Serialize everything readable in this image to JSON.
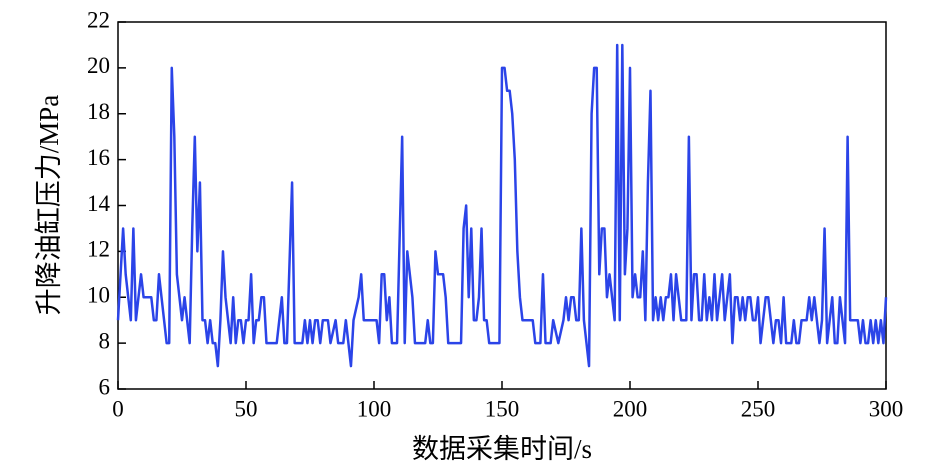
{
  "chart_data": {
    "type": "line",
    "xlabel": "数据采集时间/s",
    "ylabel": "升降油缸压力/MPa",
    "xlim": [
      0,
      300
    ],
    "xticks": [
      0,
      50,
      100,
      150,
      200,
      250,
      300
    ],
    "ylim": [
      6,
      22
    ],
    "yticks": [
      6,
      8,
      10,
      12,
      14,
      16,
      18,
      20,
      22
    ],
    "x": [
      0,
      1,
      2,
      3,
      4,
      5,
      6,
      7,
      8,
      9,
      10,
      12,
      13,
      14,
      15,
      16,
      17,
      18,
      19,
      20,
      21,
      22,
      23,
      24,
      25,
      26,
      27,
      28,
      29,
      30,
      31,
      32,
      33,
      34,
      35,
      36,
      37,
      38,
      39,
      40,
      41,
      42,
      43,
      44,
      45,
      46,
      47,
      48,
      49,
      50,
      51,
      52,
      53,
      54,
      55,
      56,
      57,
      58,
      60,
      62,
      63,
      64,
      65,
      66,
      68,
      69,
      72,
      73,
      74,
      75,
      76,
      77,
      78,
      79,
      80,
      82,
      83,
      85,
      86,
      88,
      89,
      90,
      91,
      92,
      94,
      95,
      96,
      100,
      101,
      102,
      103,
      104,
      105,
      106,
      107,
      109,
      111,
      112,
      113,
      114,
      115,
      116,
      120,
      121,
      122,
      123,
      124,
      125,
      127,
      128,
      129,
      134,
      135,
      136,
      137,
      138,
      139,
      140,
      141,
      142,
      143,
      144,
      145,
      149,
      150,
      151,
      152,
      153,
      154,
      155,
      156,
      157,
      158,
      160,
      162,
      163,
      165,
      166,
      167,
      169,
      170,
      172,
      174,
      175,
      176,
      177,
      178,
      179,
      180,
      181,
      182,
      183,
      184,
      185,
      186,
      187,
      188,
      189,
      190,
      191,
      192,
      194,
      195,
      196,
      197,
      198,
      199,
      200,
      201,
      202,
      203,
      204,
      205,
      206,
      207,
      208,
      209,
      210,
      211,
      212,
      213,
      214,
      215,
      216,
      217,
      218,
      219,
      220,
      222,
      223,
      224,
      225,
      226,
      227,
      228,
      229,
      230,
      231,
      232,
      233,
      234,
      235,
      236,
      237,
      238,
      239,
      240,
      241,
      242,
      243,
      244,
      245,
      246,
      247,
      248,
      249,
      250,
      251,
      252,
      253,
      254,
      255,
      256,
      257,
      258,
      259,
      260,
      261,
      263,
      264,
      265,
      266,
      267,
      268,
      269,
      270,
      271,
      272,
      273,
      274,
      275,
      276,
      277,
      278,
      279,
      280,
      281,
      282,
      283,
      284,
      285,
      286,
      288,
      289,
      290,
      291,
      292,
      293,
      294,
      295,
      296,
      297,
      298,
      299,
      300
    ],
    "series": [
      {
        "color": "#2b44e8",
        "values": [
          9,
          11,
          13,
          11,
          10,
          9,
          13,
          9,
          10,
          11,
          10,
          10,
          10,
          9,
          9,
          11,
          10,
          9,
          8,
          8,
          20,
          17,
          11,
          10,
          9,
          10,
          9,
          8,
          13,
          17,
          12,
          15,
          9,
          9,
          8,
          9,
          8,
          8,
          7,
          9,
          12,
          10,
          9,
          8,
          10,
          8,
          9,
          9,
          8,
          9,
          9,
          11,
          8,
          9,
          9,
          10,
          10,
          8,
          8,
          8,
          9,
          10,
          8,
          8,
          15,
          8,
          8,
          9,
          8,
          9,
          8,
          9,
          9,
          8,
          9,
          9,
          8,
          9,
          8,
          8,
          9,
          8,
          7,
          9,
          10,
          11,
          9,
          9,
          9,
          8,
          11,
          11,
          9,
          10,
          8,
          8,
          17,
          8,
          12,
          11,
          10,
          8,
          8,
          9,
          8,
          8,
          12,
          11,
          11,
          10,
          8,
          8,
          13,
          14,
          10,
          13,
          9,
          9,
          10,
          13,
          9,
          9,
          8,
          8,
          20,
          20,
          19,
          19,
          18,
          16,
          12,
          10,
          9,
          9,
          9,
          8,
          8,
          11,
          8,
          8,
          9,
          8,
          9,
          10,
          9,
          10,
          10,
          9,
          9,
          13,
          9,
          8,
          7,
          18,
          20,
          20,
          11,
          13,
          13,
          10,
          11,
          9,
          21,
          9,
          21,
          11,
          13,
          20,
          10,
          11,
          10,
          10,
          12,
          9,
          15,
          19,
          9,
          10,
          9,
          10,
          9,
          10,
          10,
          11,
          9,
          11,
          10,
          9,
          9,
          17,
          9,
          11,
          11,
          9,
          9,
          11,
          9,
          10,
          9,
          11,
          9,
          10,
          11,
          9,
          10,
          11,
          8,
          10,
          10,
          9,
          10,
          9,
          10,
          10,
          9,
          9,
          10,
          8,
          9,
          10,
          10,
          9,
          8,
          9,
          9,
          8,
          10,
          8,
          8,
          9,
          8,
          8,
          9,
          9,
          9,
          10,
          9,
          10,
          9,
          8,
          9,
          13,
          8,
          9,
          10,
          8,
          8,
          10,
          9,
          8,
          17,
          9,
          9,
          9,
          8,
          9,
          8,
          8,
          9,
          8,
          9,
          8,
          9,
          8,
          10
        ]
      }
    ]
  }
}
